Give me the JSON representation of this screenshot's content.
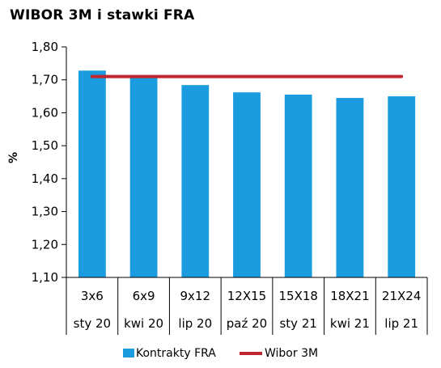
{
  "chart_data": {
    "type": "bar",
    "title": "WIBOR 3M i stawki FRA",
    "ylabel": "%",
    "xlabel": "",
    "ylim": [
      1.1,
      1.8
    ],
    "ytick_step": 0.1,
    "yticks": [
      "1,10",
      "1,20",
      "1,30",
      "1,40",
      "1,50",
      "1,60",
      "1,70",
      "1,80"
    ],
    "categories": [
      [
        "3x6",
        "sty 20"
      ],
      [
        "6x9",
        "kwi 20"
      ],
      [
        "9x12",
        "lip 20"
      ],
      [
        "12X15",
        "paź 20"
      ],
      [
        "15X18",
        "sty 21"
      ],
      [
        "18X21",
        "kwi 21"
      ],
      [
        "21X24",
        "lip 21"
      ]
    ],
    "series": [
      {
        "name": "Kontrakty FRA",
        "type": "bar",
        "color": "#1b9be0",
        "values": [
          1.728,
          1.712,
          1.684,
          1.662,
          1.655,
          1.645,
          1.65
        ]
      },
      {
        "name": "Wibor 3M",
        "type": "line",
        "color": "#c0262d",
        "values": [
          1.71,
          1.71,
          1.71,
          1.71,
          1.71,
          1.71,
          1.71
        ]
      }
    ],
    "grid": false,
    "legend": "bottom"
  }
}
